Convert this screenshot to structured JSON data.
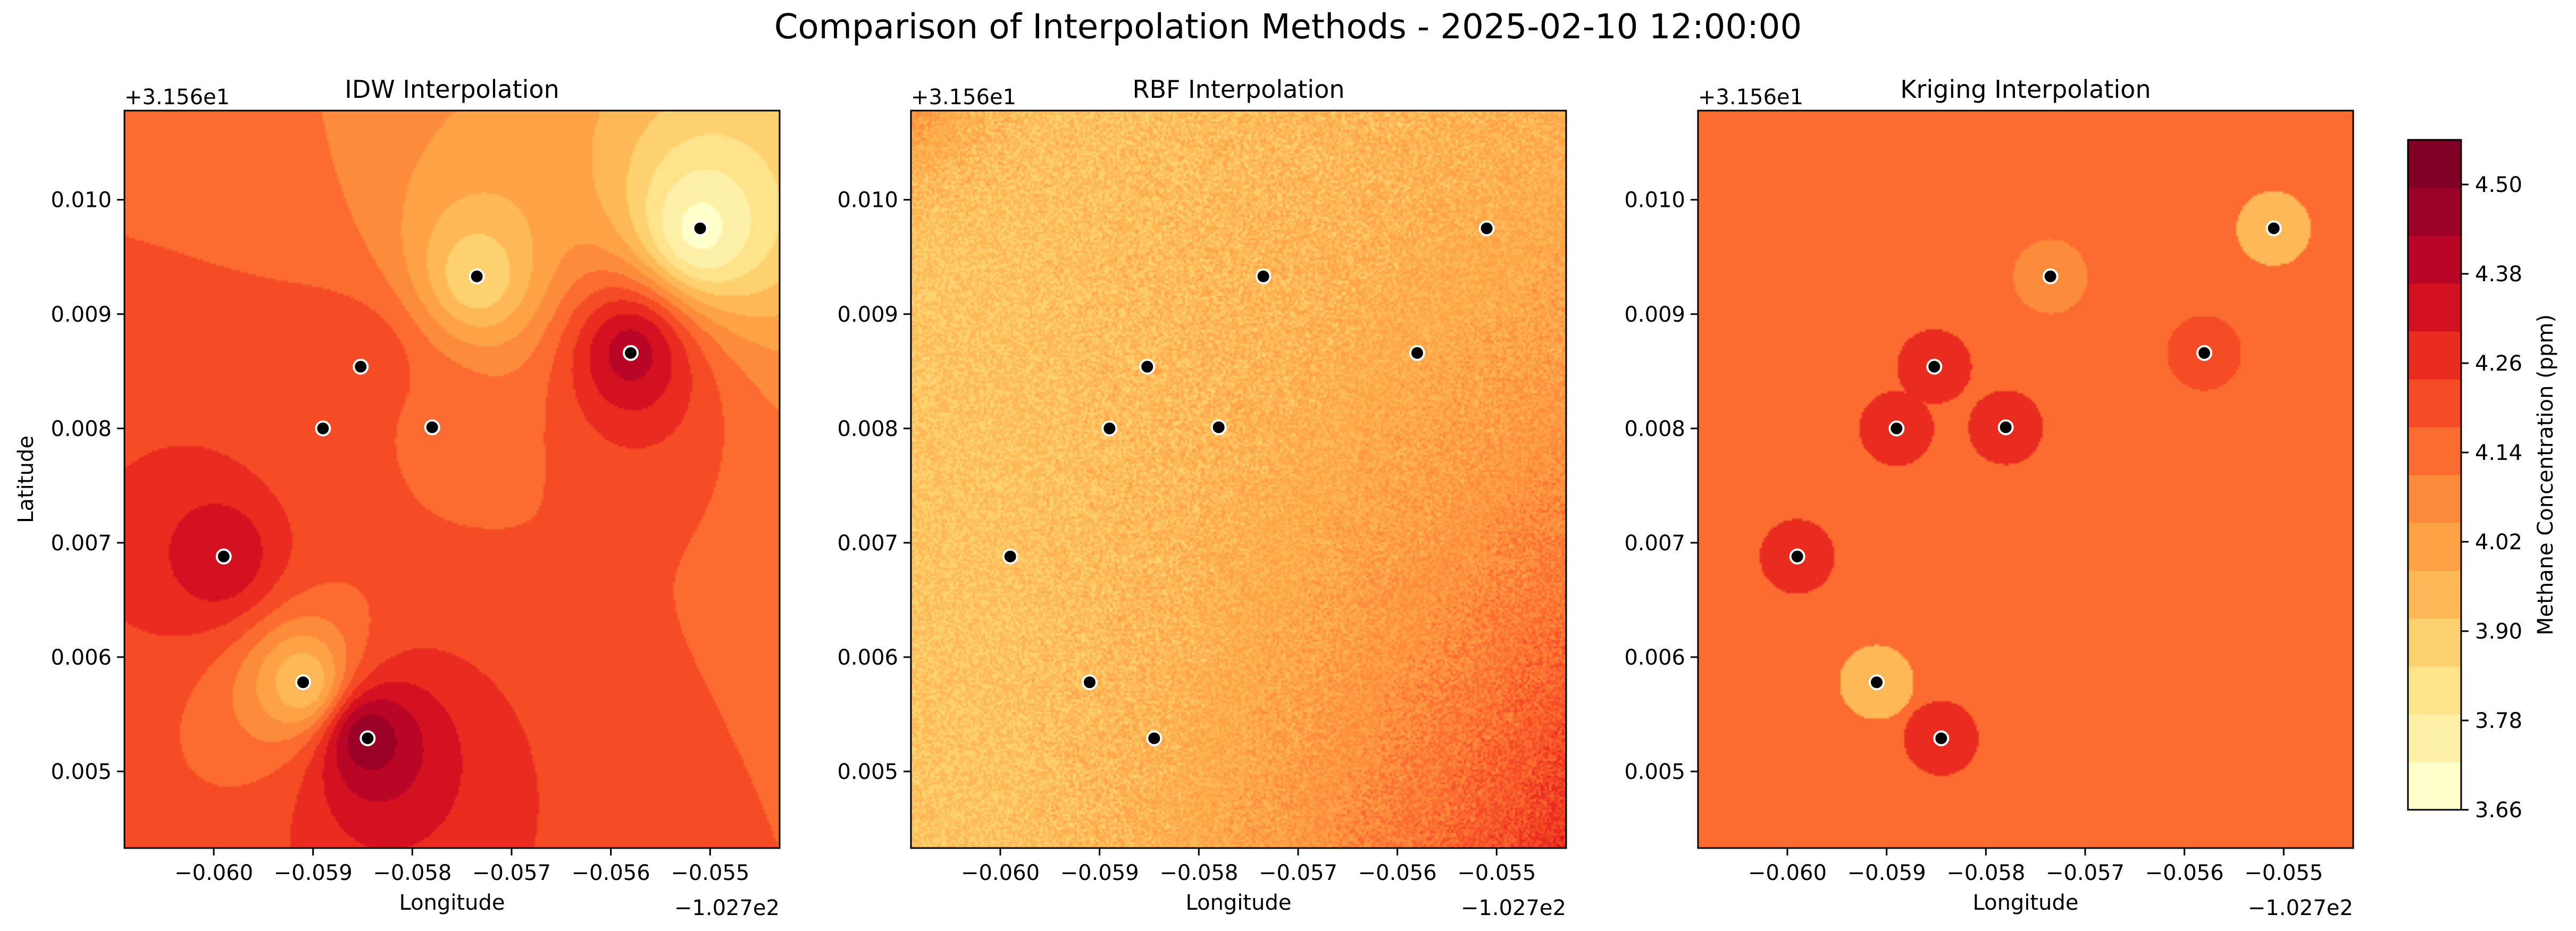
{
  "figure": {
    "title": "Comparison of Interpolation Methods - 2025-02-10 12:00:00"
  },
  "colors": {
    "scale": [
      "#ffffcc",
      "#fff0a8",
      "#ffe38b",
      "#fed16f",
      "#feb855",
      "#fea246",
      "#fd8b3c",
      "#fc6b30",
      "#f54c26",
      "#e92c1f",
      "#d31121",
      "#b90526",
      "#9b0026",
      "#800026"
    ],
    "station_face": "#000000",
    "station_edge": "#ffffff"
  },
  "chart_data": [
    {
      "type": "heatmap",
      "title": "IDW Interpolation",
      "method": "IDW",
      "xlabel": "Longitude",
      "ylabel": "Latitude",
      "x_offset_label": "−1.027e2",
      "y_offset_label": "+3.156e1",
      "x_offset": -102.7,
      "y_offset": 31.56,
      "xlim": [
        -0.0609,
        -0.0543
      ],
      "ylim": [
        0.00433,
        0.01078
      ],
      "x_ticks": [
        -0.06,
        -0.059,
        -0.058,
        -0.057,
        -0.056,
        -0.055
      ],
      "x_tick_labels": [
        "−0.060",
        "−0.059",
        "−0.058",
        "−0.057",
        "−0.056",
        "−0.055"
      ],
      "y_ticks": [
        0.005,
        0.006,
        0.007,
        0.008,
        0.009,
        0.01
      ],
      "y_tick_labels": [
        "0.005",
        "0.006",
        "0.007",
        "0.008",
        "0.009",
        "0.010"
      ],
      "stations": [
        {
          "lon": -0.0599,
          "lat": 0.00688,
          "value": 4.36
        },
        {
          "lon": -0.0591,
          "lat": 0.00578,
          "value": 3.92
        },
        {
          "lon": -0.05845,
          "lat": 0.00529,
          "value": 4.48
        },
        {
          "lon": -0.0589,
          "lat": 0.008,
          "value": 4.2
        },
        {
          "lon": -0.05852,
          "lat": 0.00854,
          "value": 4.24
        },
        {
          "lon": -0.0578,
          "lat": 0.00801,
          "value": 4.16
        },
        {
          "lon": -0.05735,
          "lat": 0.00933,
          "value": 3.86
        },
        {
          "lon": -0.0558,
          "lat": 0.00866,
          "value": 4.4
        },
        {
          "lon": -0.0551,
          "lat": 0.00975,
          "value": 3.7
        }
      ]
    },
    {
      "type": "heatmap",
      "title": "RBF Interpolation",
      "method": "RBF",
      "xlabel": "Longitude",
      "ylabel": "",
      "x_offset_label": "−1.027e2",
      "y_offset_label": "+3.156e1",
      "x_offset": -102.7,
      "y_offset": 31.56,
      "xlim": [
        -0.0609,
        -0.0543
      ],
      "ylim": [
        0.00433,
        0.01078
      ],
      "x_ticks": [
        -0.06,
        -0.059,
        -0.058,
        -0.057,
        -0.056,
        -0.055
      ],
      "x_tick_labels": [
        "−0.060",
        "−0.059",
        "−0.058",
        "−0.057",
        "−0.056",
        "−0.055"
      ],
      "y_ticks": [
        0.005,
        0.006,
        0.007,
        0.008,
        0.009,
        0.01
      ],
      "y_tick_labels": [
        "0.005",
        "0.006",
        "0.007",
        "0.008",
        "0.009",
        "0.010"
      ],
      "stations": [
        {
          "lon": -0.0599,
          "lat": 0.00688
        },
        {
          "lon": -0.0591,
          "lat": 0.00578
        },
        {
          "lon": -0.05845,
          "lat": 0.00529
        },
        {
          "lon": -0.0589,
          "lat": 0.008
        },
        {
          "lon": -0.05852,
          "lat": 0.00854
        },
        {
          "lon": -0.0578,
          "lat": 0.00801
        },
        {
          "lon": -0.05735,
          "lat": 0.00933
        },
        {
          "lon": -0.0558,
          "lat": 0.00866
        },
        {
          "lon": -0.0551,
          "lat": 0.00975
        }
      ]
    },
    {
      "type": "heatmap",
      "title": "Kriging Interpolation",
      "method": "Kriging",
      "xlabel": "Longitude",
      "ylabel": "",
      "x_offset_label": "−1.027e2",
      "y_offset_label": "+3.156e1",
      "x_offset": -102.7,
      "y_offset": 31.56,
      "xlim": [
        -0.0609,
        -0.0543
      ],
      "ylim": [
        0.00433,
        0.01078
      ],
      "x_ticks": [
        -0.06,
        -0.059,
        -0.058,
        -0.057,
        -0.056,
        -0.055
      ],
      "x_tick_labels": [
        "−0.060",
        "−0.059",
        "−0.058",
        "−0.057",
        "−0.056",
        "−0.055"
      ],
      "y_ticks": [
        0.005,
        0.006,
        0.007,
        0.008,
        0.009,
        0.01
      ],
      "y_tick_labels": [
        "0.005",
        "0.006",
        "0.007",
        "0.008",
        "0.009",
        "0.010"
      ],
      "background_value": 4.17,
      "stations": [
        {
          "lon": -0.0599,
          "lat": 0.00688,
          "value": 4.24
        },
        {
          "lon": -0.0591,
          "lat": 0.00578,
          "value": 3.92
        },
        {
          "lon": -0.05845,
          "lat": 0.00529,
          "value": 4.26
        },
        {
          "lon": -0.0589,
          "lat": 0.008,
          "value": 4.24
        },
        {
          "lon": -0.05852,
          "lat": 0.00854,
          "value": 4.24
        },
        {
          "lon": -0.0578,
          "lat": 0.00801,
          "value": 4.24
        },
        {
          "lon": -0.05735,
          "lat": 0.00933,
          "value": 4.05
        },
        {
          "lon": -0.0558,
          "lat": 0.00866,
          "value": 4.22
        },
        {
          "lon": -0.0551,
          "lat": 0.00975,
          "value": 3.95
        }
      ]
    }
  ],
  "colorbar": {
    "label": "Methane Concentration (ppm)",
    "min": 3.66,
    "max": 4.56,
    "levels": 15,
    "ticks": [
      3.66,
      3.78,
      3.9,
      4.02,
      4.14,
      4.26,
      4.38,
      4.5
    ],
    "tick_labels": [
      "3.66",
      "3.78",
      "3.90",
      "4.02",
      "4.14",
      "4.26",
      "4.38",
      "4.50"
    ]
  }
}
